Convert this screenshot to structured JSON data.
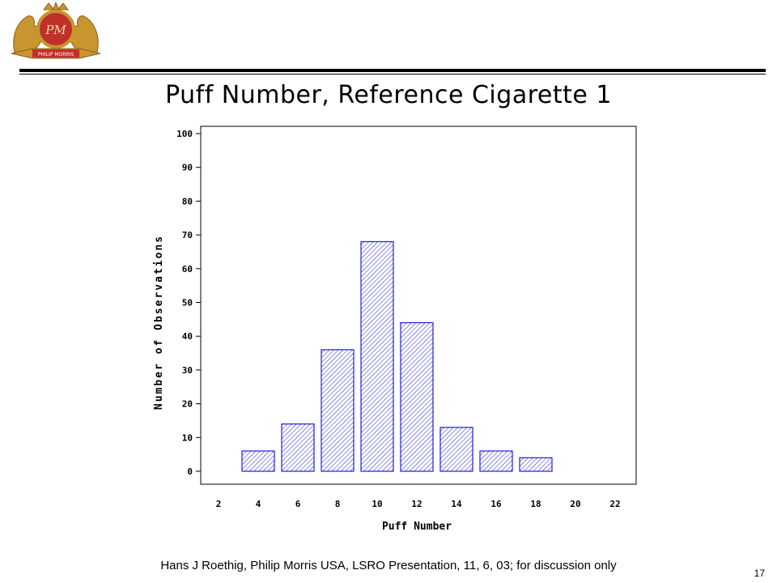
{
  "brand": {
    "logo_text": "PM",
    "logo_banner": "PHILIP MORRIS",
    "colors": {
      "logo_gold": "#c8952f",
      "logo_red": "#c0302b",
      "bar_blue": "#1f1fd6"
    }
  },
  "chart_data": {
    "type": "bar",
    "title": "Puff Number, Reference Cigarette 1",
    "xlabel": "Puff Number",
    "ylabel": "Number of Observations",
    "categories": [
      "2",
      "4",
      "6",
      "8",
      "10",
      "12",
      "14",
      "16",
      "18",
      "20",
      "22"
    ],
    "values": [
      0,
      6,
      14,
      36,
      68,
      44,
      13,
      6,
      4,
      0,
      0
    ],
    "yticks": [
      "0",
      "10",
      "20",
      "30",
      "40",
      "50",
      "60",
      "70",
      "80",
      "90",
      "100"
    ],
    "ylim": [
      0,
      100
    ],
    "grid": false,
    "fill_pattern": "diagonal-hatch"
  },
  "footer": {
    "text": "Hans J Roethig, Philip Morris USA, LSRO Presentation, 11, 6, 03; for discussion only",
    "page_number": "17"
  }
}
